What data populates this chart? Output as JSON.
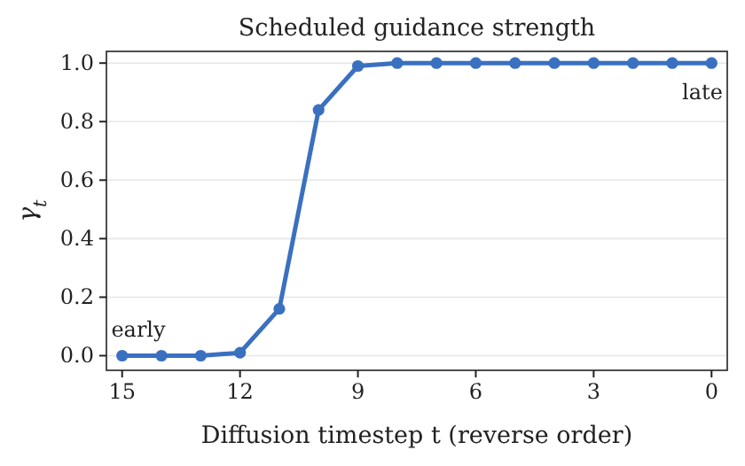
{
  "chart_data": {
    "type": "line",
    "title": "Scheduled guidance strength",
    "xlabel": "Diffusion timestep t (reverse order)",
    "ylabel": "γ$_{t}$",
    "x": [
      15,
      14,
      13,
      12,
      11,
      10,
      9,
      8,
      7,
      6,
      5,
      4,
      3,
      2,
      1,
      0
    ],
    "series": [
      {
        "color": "#3a70c0",
        "values": [
          0,
          0,
          0,
          0.01,
          0.16,
          0.84,
          0.99,
          1,
          1,
          1,
          1,
          1,
          1,
          1,
          1,
          1
        ]
      }
    ],
    "xlim": [
      15.4,
      -0.4
    ],
    "ylim": [
      -0.05,
      1.04
    ],
    "xticks": [
      15,
      12,
      9,
      6,
      3,
      0
    ],
    "yticks": [
      {
        "value": 0,
        "label": "0.0"
      },
      0.2,
      0.4,
      0.6,
      0.8,
      {
        "value": 1,
        "label": "1.0"
      }
    ],
    "annotations": [
      "early",
      "late"
    ],
    "grid": "y",
    "marker": "circle",
    "line_style": "solid"
  }
}
